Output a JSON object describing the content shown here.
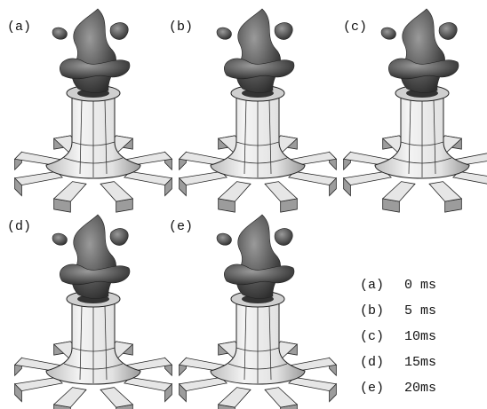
{
  "panels": [
    {
      "label": "(a)"
    },
    {
      "label": "(b)"
    },
    {
      "label": "(c)"
    },
    {
      "label": "(d)"
    },
    {
      "label": "(e)"
    }
  ],
  "legend": [
    {
      "key": "(a)",
      "time": "0 ms"
    },
    {
      "key": "(b)",
      "time": "5 ms"
    },
    {
      "key": "(c)",
      "time": "10ms"
    },
    {
      "key": "(d)",
      "time": "15ms"
    },
    {
      "key": "(e)",
      "time": "20ms"
    }
  ]
}
